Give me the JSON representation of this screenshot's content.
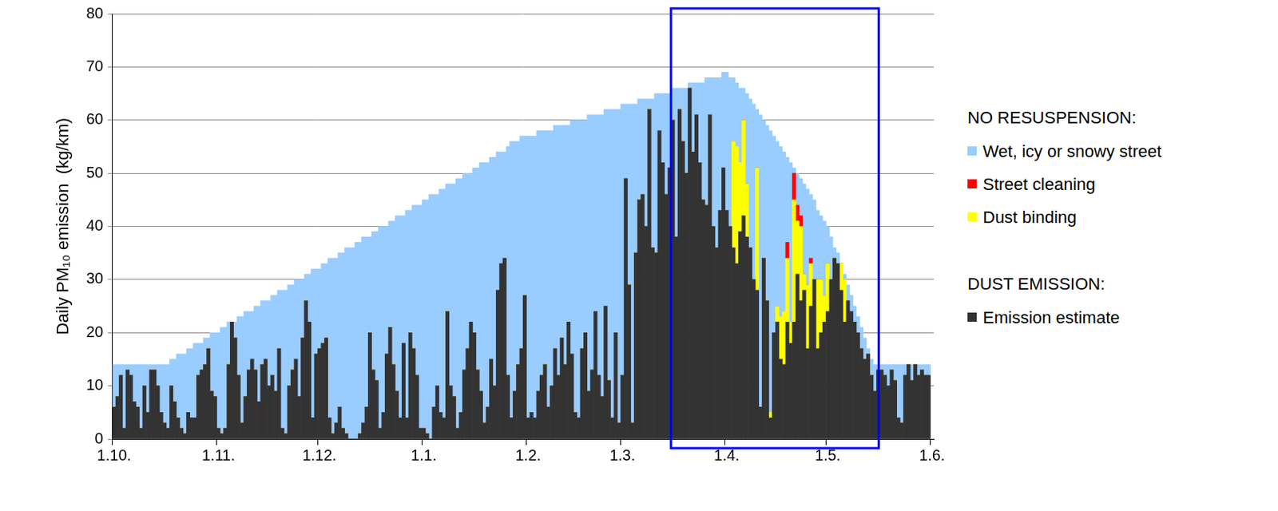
{
  "chart_data": {
    "type": "bar",
    "y_label": "Daily PM₁₀ emission  (kg/km)",
    "stacked": true,
    "grid": true,
    "legend": "right",
    "ylim": [
      0,
      80
    ],
    "yticks": [
      0,
      10,
      20,
      30,
      40,
      50,
      60,
      70,
      80
    ],
    "categories": [
      "1.10.",
      null,
      null,
      null,
      null,
      null,
      null,
      null,
      null,
      null,
      null,
      null,
      null,
      null,
      null,
      null,
      null,
      null,
      null,
      null,
      null,
      null,
      null,
      null,
      null,
      null,
      null,
      null,
      null,
      null,
      null,
      "1.11.",
      null,
      null,
      null,
      null,
      null,
      null,
      null,
      null,
      null,
      null,
      null,
      null,
      null,
      null,
      null,
      null,
      null,
      null,
      null,
      null,
      null,
      null,
      null,
      null,
      null,
      null,
      null,
      null,
      null,
      "1.12.",
      null,
      null,
      null,
      null,
      null,
      null,
      null,
      null,
      null,
      null,
      null,
      null,
      null,
      null,
      null,
      null,
      null,
      null,
      null,
      null,
      null,
      null,
      null,
      null,
      null,
      null,
      null,
      null,
      null,
      null,
      "1.1.",
      null,
      null,
      null,
      null,
      null,
      null,
      null,
      null,
      null,
      null,
      null,
      null,
      null,
      null,
      null,
      null,
      null,
      null,
      null,
      null,
      null,
      null,
      null,
      null,
      null,
      null,
      null,
      null,
      null,
      null,
      "1.2.",
      null,
      null,
      null,
      null,
      null,
      null,
      null,
      null,
      null,
      null,
      null,
      null,
      null,
      null,
      null,
      null,
      null,
      null,
      null,
      null,
      null,
      null,
      null,
      null,
      null,
      null,
      null,
      "1.3.",
      null,
      null,
      null,
      null,
      null,
      null,
      null,
      null,
      null,
      null,
      null,
      null,
      null,
      null,
      null,
      null,
      null,
      null,
      null,
      null,
      null,
      null,
      null,
      null,
      null,
      null,
      null,
      null,
      null,
      null,
      "1.4.",
      null,
      null,
      null,
      null,
      null,
      null,
      null,
      null,
      null,
      null,
      null,
      null,
      null,
      null,
      null,
      null,
      null,
      null,
      null,
      null,
      null,
      null,
      null,
      null,
      null,
      null,
      null,
      null,
      null,
      "1.5.",
      null,
      null,
      null,
      null,
      null,
      null,
      null,
      null,
      null,
      null,
      null,
      null,
      null,
      null,
      null,
      null,
      null,
      null,
      null,
      null,
      null,
      null,
      null,
      null,
      null,
      null,
      null,
      null,
      null,
      null,
      "1.6."
    ],
    "series": [
      {
        "name": "Wet, icy or snowy street",
        "color": "#99ccff",
        "legend_group": "NO RESUSPENSION:",
        "values": [
          8,
          6,
          2,
          12,
          1,
          2,
          7,
          8,
          12,
          4,
          9,
          1,
          1,
          4,
          9,
          11,
          12,
          5,
          8,
          12,
          14,
          15,
          12,
          13,
          14,
          6,
          5,
          5,
          2,
          11,
          12,
          18,
          20,
          19,
          8,
          0,
          3,
          11,
          20,
          16,
          11,
          9,
          12,
          18,
          12,
          11,
          16,
          15,
          18,
          11,
          26,
          27,
          19,
          16,
          15,
          22,
          11,
          5,
          9,
          28,
          16,
          15,
          15,
          14,
          30,
          33,
          31,
          29,
          33,
          35,
          36,
          36,
          37,
          36,
          35,
          32,
          18,
          26,
          28,
          38,
          35,
          24,
          20,
          27,
          33,
          38,
          24,
          39,
          23,
          27,
          32,
          42,
          43,
          44,
          46,
          40,
          36,
          42,
          43,
          24,
          38,
          40,
          47,
          44,
          37,
          33,
          28,
          31,
          38,
          43,
          49,
          46,
          38,
          43,
          26,
          21,
          20,
          43,
          52,
          47,
          42,
          40,
          30,
          53,
          52,
          53,
          49,
          46,
          44,
          52,
          48,
          42,
          47,
          40,
          45,
          37,
          44,
          55,
          56,
          43,
          40,
          52,
          48,
          37,
          49,
          53,
          37,
          51,
          58,
          42,
          59,
          51,
          14,
          34,
          60,
          28,
          19,
          18,
          24,
          2,
          28,
          30,
          7,
          13,
          19,
          14,
          6,
          28,
          4,
          10,
          16,
          1,
          13,
          6,
          15,
          22,
          24,
          7,
          28,
          32,
          25,
          18,
          26,
          28,
          12,
          12,
          14,
          6,
          17,
          28,
          33,
          11,
          55,
          26,
          33,
          53,
          37,
          31,
          32,
          30,
          16,
          30,
          1,
          6,
          7,
          17,
          18,
          12,
          15,
          13,
          12,
          14,
          7,
          8,
          2,
          2,
          0,
          1,
          3,
          3,
          3,
          3,
          4,
          4,
          1,
          3,
          5,
          1,
          1,
          2,
          4,
          1,
          3,
          10,
          11,
          2,
          0,
          3,
          0,
          2,
          1,
          2,
          2,
          null
        ]
      },
      {
        "name": "Street cleaning",
        "color": "#ff0000",
        "legend_group": "NO RESUSPENSION:",
        "values": [
          0,
          0,
          0,
          0,
          0,
          0,
          0,
          0,
          0,
          0,
          0,
          0,
          0,
          0,
          0,
          0,
          0,
          0,
          0,
          0,
          0,
          0,
          0,
          0,
          0,
          0,
          0,
          0,
          0,
          0,
          0,
          0,
          0,
          0,
          0,
          0,
          0,
          0,
          0,
          0,
          0,
          0,
          0,
          0,
          0,
          0,
          0,
          0,
          0,
          0,
          0,
          0,
          0,
          0,
          0,
          0,
          0,
          0,
          0,
          0,
          0,
          0,
          0,
          0,
          0,
          0,
          0,
          0,
          0,
          0,
          0,
          0,
          0,
          0,
          0,
          0,
          0,
          0,
          0,
          0,
          0,
          0,
          0,
          0,
          0,
          0,
          0,
          0,
          0,
          0,
          0,
          0,
          0,
          0,
          0,
          0,
          0,
          0,
          0,
          0,
          0,
          0,
          0,
          0,
          0,
          0,
          0,
          0,
          0,
          0,
          0,
          0,
          0,
          0,
          0,
          0,
          0,
          0,
          0,
          0,
          0,
          0,
          0,
          0,
          0,
          0,
          0,
          0,
          0,
          0,
          0,
          0,
          0,
          0,
          0,
          0,
          0,
          0,
          0,
          0,
          0,
          0,
          0,
          0,
          0,
          0,
          0,
          0,
          0,
          0,
          0,
          0,
          0,
          0,
          0,
          0,
          0,
          0,
          0,
          0,
          0,
          0,
          0,
          0,
          0,
          0,
          0,
          0,
          0,
          0,
          0,
          0,
          0,
          0,
          0,
          0,
          0,
          0,
          0,
          0,
          0,
          0,
          0,
          0,
          0,
          0,
          0,
          0,
          0,
          0,
          0,
          0,
          0,
          0,
          0,
          0,
          0,
          0,
          0,
          0,
          3,
          0,
          5,
          3,
          2,
          0,
          0,
          1,
          0,
          0,
          0,
          0,
          0,
          0,
          0,
          0,
          0,
          0,
          0,
          0,
          0,
          0,
          0,
          0,
          0,
          0,
          0,
          0,
          0,
          0,
          0,
          0,
          0,
          0,
          0,
          0,
          0,
          0,
          0,
          0,
          0,
          0,
          0,
          null
        ]
      },
      {
        "name": "Dust binding",
        "color": "#ffff00",
        "legend_group": "NO RESUSPENSION:",
        "values": [
          0,
          0,
          0,
          0,
          0,
          0,
          0,
          0,
          0,
          0,
          0,
          0,
          0,
          0,
          0,
          0,
          0,
          0,
          0,
          0,
          0,
          0,
          0,
          0,
          0,
          0,
          0,
          0,
          0,
          0,
          0,
          0,
          0,
          0,
          0,
          0,
          0,
          0,
          0,
          0,
          0,
          0,
          0,
          0,
          0,
          0,
          0,
          0,
          0,
          0,
          0,
          0,
          0,
          0,
          0,
          0,
          0,
          0,
          0,
          0,
          0,
          0,
          0,
          0,
          0,
          0,
          0,
          0,
          0,
          0,
          0,
          0,
          0,
          0,
          0,
          0,
          0,
          0,
          0,
          0,
          0,
          0,
          0,
          0,
          0,
          0,
          0,
          0,
          0,
          0,
          0,
          0,
          0,
          0,
          0,
          0,
          0,
          0,
          0,
          0,
          0,
          0,
          0,
          0,
          0,
          0,
          0,
          0,
          0,
          0,
          0,
          0,
          0,
          0,
          0,
          0,
          0,
          0,
          0,
          0,
          0,
          0,
          0,
          0,
          0,
          0,
          0,
          0,
          0,
          0,
          0,
          0,
          0,
          0,
          0,
          0,
          0,
          0,
          0,
          0,
          0,
          0,
          0,
          0,
          0,
          0,
          0,
          0,
          0,
          0,
          0,
          0,
          0,
          0,
          0,
          0,
          0,
          0,
          0,
          0,
          0,
          0,
          0,
          0,
          0,
          0,
          0,
          0,
          0,
          0,
          0,
          0,
          0,
          0,
          0,
          0,
          0,
          0,
          0,
          0,
          0,
          0,
          0,
          0,
          20,
          22,
          13,
          18,
          10,
          0,
          0,
          23,
          0,
          0,
          0,
          1,
          0,
          3,
          8,
          10,
          12,
          4,
          23,
          10,
          14,
          3,
          12,
          8,
          0,
          13,
          10,
          5,
          9,
          0,
          0,
          0,
          5,
          8,
          0,
          0,
          0,
          0,
          0,
          0,
          0,
          0,
          0,
          0,
          0,
          0,
          0,
          0,
          0,
          0,
          0,
          0,
          0,
          0,
          0,
          0,
          0,
          0,
          0,
          null
        ]
      },
      {
        "name": "Emission estimate",
        "color": "#333333",
        "legend_group": "DUST EMISSION:",
        "values": [
          6,
          8,
          12,
          2,
          13,
          12,
          7,
          6,
          2,
          10,
          5,
          13,
          13,
          10,
          5,
          3,
          2,
          10,
          7,
          4,
          2,
          1,
          5,
          4,
          4,
          12,
          13,
          14,
          17,
          9,
          8,
          2,
          1,
          2,
          14,
          22,
          19,
          12,
          3,
          8,
          13,
          15,
          13,
          7,
          14,
          15,
          10,
          12,
          9,
          17,
          2,
          1,
          10,
          13,
          15,
          8,
          19,
          26,
          22,
          4,
          16,
          17,
          18,
          19,
          4,
          1,
          3,
          6,
          2,
          1,
          0,
          0,
          0,
          1,
          3,
          6,
          20,
          13,
          11,
          2,
          5,
          16,
          21,
          14,
          9,
          4,
          18,
          4,
          20,
          17,
          12,
          2,
          2,
          1,
          0,
          6,
          10,
          5,
          4,
          24,
          10,
          8,
          2,
          5,
          13,
          17,
          22,
          20,
          13,
          9,
          3,
          6,
          15,
          10,
          28,
          33,
          34,
          12,
          4,
          9,
          14,
          17,
          27,
          4,
          5,
          4,
          9,
          12,
          14,
          6,
          10,
          17,
          12,
          19,
          14,
          22,
          16,
          5,
          4,
          17,
          20,
          9,
          13,
          24,
          12,
          8,
          25,
          11,
          4,
          20,
          3,
          12,
          49,
          29,
          3,
          35,
          45,
          46,
          40,
          62,
          36,
          35,
          58,
          52,
          46,
          51,
          60,
          38,
          62,
          56,
          50,
          66,
          54,
          61,
          52,
          45,
          44,
          61,
          40,
          36,
          43,
          51,
          43,
          40,
          36,
          33,
          39,
          42,
          38,
          36,
          30,
          28,
          6,
          34,
          26,
          4,
          20,
          22,
          15,
          14,
          22,
          18,
          22,
          31,
          26,
          28,
          17,
          25,
          30,
          17,
          20,
          22,
          24,
          30,
          34,
          33,
          28,
          22,
          26,
          24,
          22,
          20,
          17,
          15,
          16,
          12,
          9,
          13,
          13,
          12,
          10,
          13,
          11,
          4,
          3,
          12,
          14,
          11,
          14,
          12,
          13,
          12,
          12,
          null
        ]
      }
    ]
  }
}
